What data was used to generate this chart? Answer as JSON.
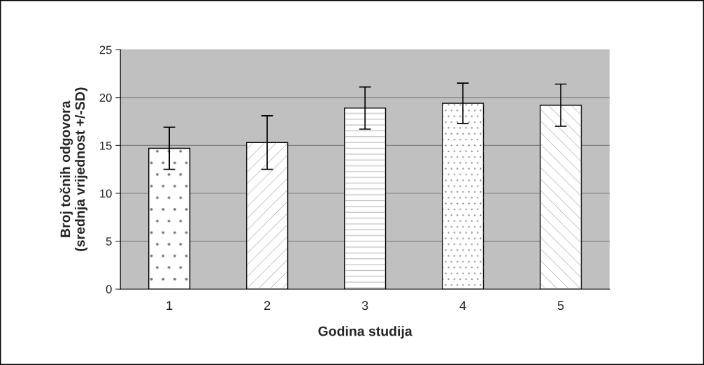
{
  "chart_data": {
    "type": "bar",
    "xlabel": "Godina studija",
    "ylabel": "Broj točnih odgovora\n(srednja vrijednost +/-SD)",
    "categories": [
      "1",
      "2",
      "3",
      "4",
      "5"
    ],
    "values": [
      14.7,
      15.3,
      18.9,
      19.4,
      19.2
    ],
    "errors": [
      2.2,
      2.8,
      2.2,
      2.1,
      2.2
    ],
    "color": "#ffffff",
    "ylim": [
      0,
      25
    ],
    "yticks": [
      0,
      5,
      10,
      15,
      20,
      25
    ],
    "grid": "y",
    "legend": false
  }
}
